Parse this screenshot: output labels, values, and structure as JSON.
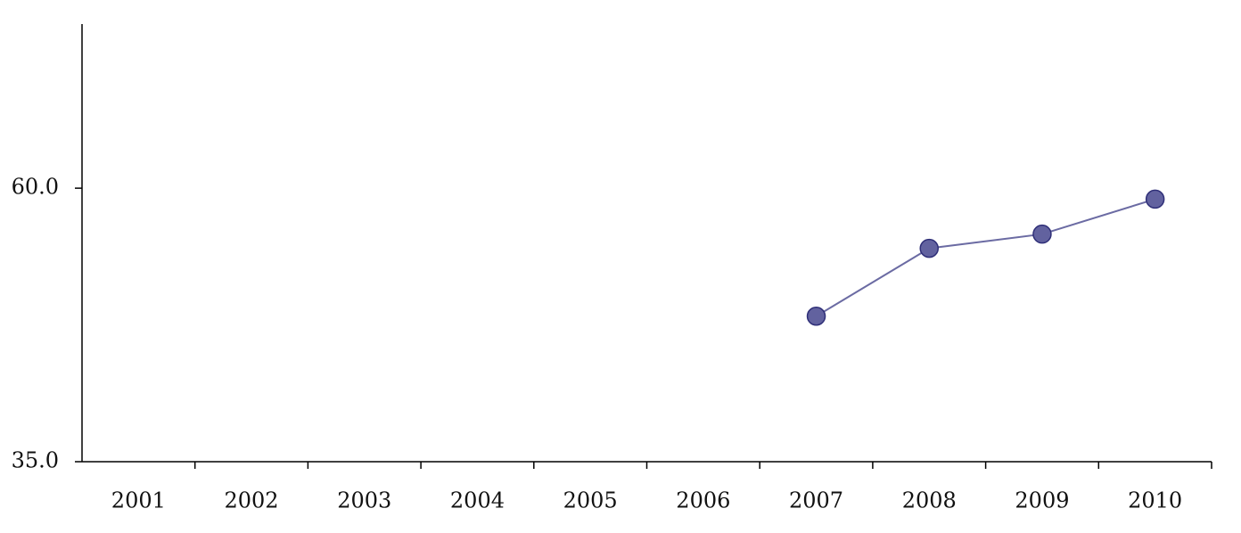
{
  "chart_data": {
    "type": "line",
    "categories": [
      "2001",
      "2002",
      "2003",
      "2004",
      "2005",
      "2006",
      "2007",
      "2008",
      "2009",
      "2010"
    ],
    "values": [
      null,
      null,
      null,
      null,
      null,
      null,
      48.3,
      54.5,
      55.8,
      59.0
    ],
    "color": "#6b6ba3",
    "marker_color": "#62629f",
    "ylim": [
      35,
      75
    ],
    "yticks": [
      {
        "value": 35,
        "label": "35.0"
      },
      {
        "value": 60,
        "label": "60.0"
      }
    ],
    "grid": false
  }
}
